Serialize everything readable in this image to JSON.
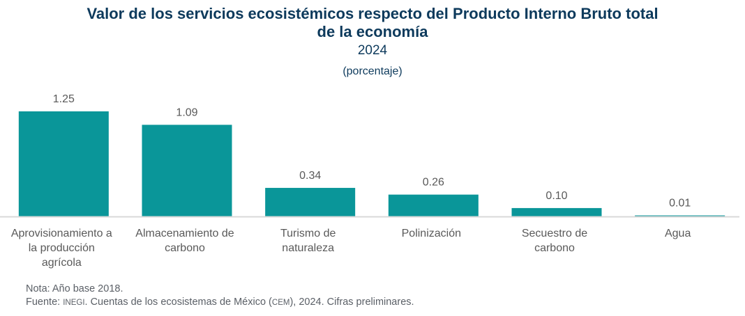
{
  "chart_data": {
    "type": "bar",
    "title": "Valor de los servicios ecosistémicos respecto del Producto Interno Bruto total de la economía",
    "title_lines": [
      "Valor de los servicios ecosistémicos respecto del Producto Interno Bruto total",
      "de la economía"
    ],
    "subtitle": "2024",
    "units": "(porcentaje)",
    "xlabel": "",
    "ylabel": "",
    "ylim": [
      0,
      1.25
    ],
    "grid": false,
    "legend": "none",
    "bar_color": "#0a9699",
    "axis_color": "#d9d9d9",
    "categories": [
      "Aprovisionamiento a la producción agrícola",
      "Almacenamiento de carbono",
      "Turismo de naturaleza",
      "Polinización",
      "Secuestro de carbono",
      "Agua"
    ],
    "category_lines": [
      [
        "Aprovisionamiento a",
        "la producción",
        "agrícola"
      ],
      [
        "Almacenamiento de",
        "carbono"
      ],
      [
        "Turismo de",
        "naturaleza"
      ],
      [
        "Polinización"
      ],
      [
        "Secuestro de",
        "carbono"
      ],
      [
        "Agua"
      ]
    ],
    "values": [
      1.25,
      1.09,
      0.34,
      0.26,
      0.1,
      0.01
    ],
    "value_labels": [
      "1.25",
      "1.09",
      "0.34",
      "0.26",
      "0.10",
      "0.01"
    ]
  },
  "notes": {
    "nota": "Nota: Año base 2018.",
    "fuente_prefix": "Fuente: ",
    "fuente_org": "INEGI",
    "fuente_mid": ". Cuentas de los ecosistemas de México (",
    "fuente_abbr": "CEM",
    "fuente_suffix": "), 2024. Cifras preliminares."
  }
}
